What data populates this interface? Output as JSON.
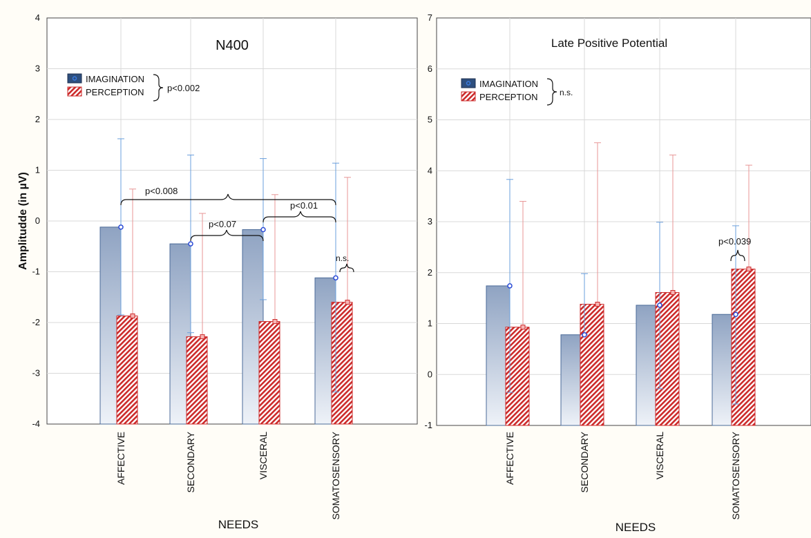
{
  "chart_data": [
    {
      "type": "bar",
      "title": "N400",
      "ylabel": "Amplitudde (in µV)",
      "xlabel": "NEEDS",
      "ylim": [
        -4,
        4
      ],
      "yticks": [
        "4",
        "3",
        "2",
        "1",
        "0",
        "-1",
        "-2",
        "-3",
        "-4"
      ],
      "categories": [
        "AFFECTIVE",
        "SECONDARY",
        "VISCERAL",
        "SOMATOSENSORY"
      ],
      "series": [
        {
          "name": "IMAGINATION",
          "values": [
            -0.12,
            -0.45,
            -0.17,
            -1.12
          ],
          "err_low": [
            -1.85,
            -2.2,
            -1.55,
            -3.37
          ],
          "err_high": [
            1.62,
            1.3,
            1.23,
            1.14
          ]
        },
        {
          "name": "PERCEPTION",
          "values": [
            -1.87,
            -2.28,
            -1.98,
            -1.6
          ],
          "err_low": [
            -1.87,
            -2.28,
            -1.98,
            -1.6
          ],
          "err_high": [
            0.63,
            0.15,
            0.52,
            0.86
          ]
        }
      ],
      "legend_note": "p<0.002",
      "annotations": [
        "p<0.008",
        "p<0.01",
        "p<0.07",
        "n.s."
      ],
      "grid": true,
      "legend_position": "top-left"
    },
    {
      "type": "bar",
      "title": "Late Positive Potential",
      "xlabel": "NEEDS",
      "ylim": [
        -1,
        7
      ],
      "yticks": [
        "7",
        "6",
        "5",
        "4",
        "3",
        "2",
        "1",
        "0",
        "-1"
      ],
      "categories": [
        "AFFECTIVE",
        "SECONDARY",
        "VISCERAL",
        "SOMATOSENSORY"
      ],
      "series": [
        {
          "name": "IMAGINATION",
          "values": [
            1.74,
            0.78,
            1.36,
            1.18
          ],
          "err_low": [
            -0.35,
            0.78,
            -0.28,
            -0.58
          ],
          "err_high": [
            3.83,
            1.98,
            2.99,
            2.92
          ]
        },
        {
          "name": "PERCEPTION",
          "values": [
            0.93,
            1.38,
            1.61,
            2.07
          ],
          "err_low": [
            0.93,
            1.38,
            1.61,
            2.07
          ],
          "err_high": [
            3.4,
            4.55,
            4.31,
            4.11
          ]
        }
      ],
      "legend_note": "n.s.",
      "annotations": [
        "p<0.039"
      ],
      "grid": true,
      "legend_position": "top-left"
    }
  ],
  "colors": {
    "imagination_dark": "#3a5a88",
    "imagination_light": "#e6ecf5",
    "imagination_error": "#6a9fdc",
    "perception": "#cc2a2a",
    "perception_error": "#e89696",
    "grid": "#d8d8d8"
  }
}
